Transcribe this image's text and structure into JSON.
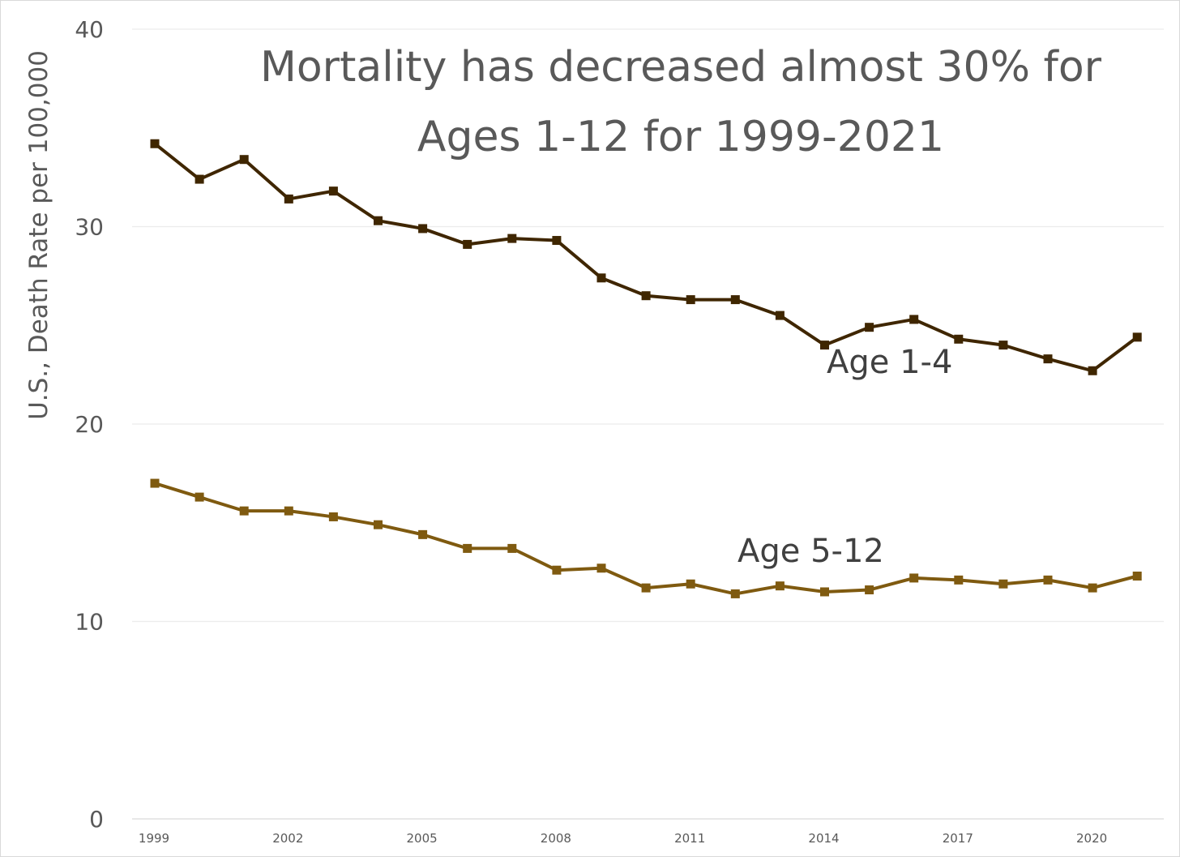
{
  "chart_data": {
    "type": "line",
    "title": "Mortality has decreased almost 30% for Ages 1-12 for 1999-2021",
    "title_lines": [
      "Mortality has decreased almost 30% for",
      "Ages 1-12 for 1999-2021"
    ],
    "xlabel": "",
    "ylabel": "U.S., Death Rate per 100,000",
    "ylim": [
      0,
      40
    ],
    "yticks": [
      0,
      10,
      20,
      30,
      40
    ],
    "xticks": [
      1999,
      2002,
      2005,
      2008,
      2011,
      2014,
      2017,
      2020
    ],
    "x": [
      1999,
      2000,
      2001,
      2002,
      2003,
      2004,
      2005,
      2006,
      2007,
      2008,
      2009,
      2010,
      2011,
      2012,
      2013,
      2014,
      2015,
      2016,
      2017,
      2018,
      2019,
      2020,
      2021
    ],
    "grid": true,
    "legend": "none",
    "series": [
      {
        "name": "Age 1-4",
        "color": "#3f2600",
        "values": [
          34.2,
          32.4,
          33.4,
          31.4,
          31.8,
          30.3,
          29.9,
          29.1,
          29.4,
          29.3,
          27.4,
          26.5,
          26.3,
          26.3,
          25.5,
          24.0,
          24.9,
          25.3,
          24.3,
          24.0,
          23.3,
          22.7,
          24.4
        ]
      },
      {
        "name": "Age 5-12",
        "color": "#7f5a10",
        "values": [
          17.0,
          16.3,
          15.6,
          15.6,
          15.3,
          14.9,
          14.4,
          13.7,
          13.7,
          12.6,
          12.7,
          11.7,
          11.9,
          11.4,
          11.8,
          11.5,
          11.6,
          12.2,
          12.1,
          11.9,
          12.1,
          11.7,
          12.3
        ]
      }
    ]
  }
}
